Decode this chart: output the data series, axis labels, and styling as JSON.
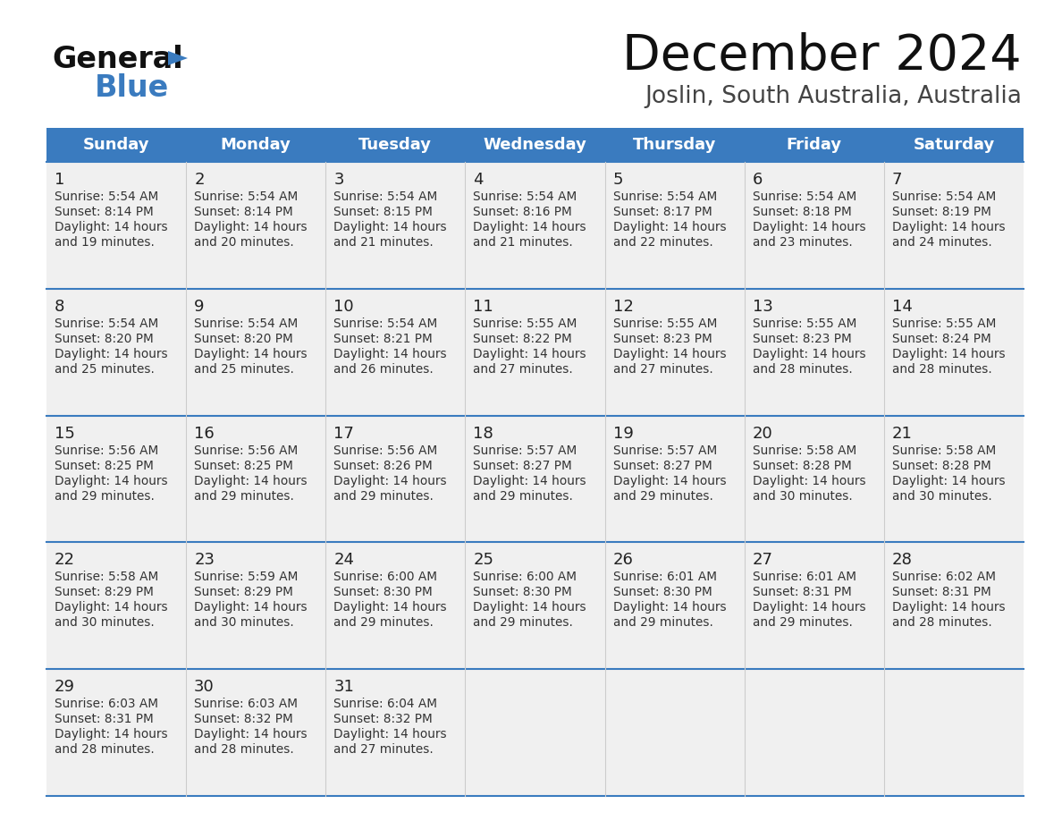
{
  "title": "December 2024",
  "subtitle": "Joslin, South Australia, Australia",
  "header_color": "#3a7bbf",
  "header_text_color": "#ffffff",
  "cell_bg": "#f0f0f0",
  "separator_color": "#3a7bbf",
  "text_color": "#222222",
  "small_text_color": "#333333",
  "day_headers": [
    "Sunday",
    "Monday",
    "Tuesday",
    "Wednesday",
    "Thursday",
    "Friday",
    "Saturday"
  ],
  "weeks": [
    [
      {
        "day": 1,
        "sunrise": "5:54 AM",
        "sunset": "8:14 PM",
        "daylight": "14 hours and 19 minutes."
      },
      {
        "day": 2,
        "sunrise": "5:54 AM",
        "sunset": "8:14 PM",
        "daylight": "14 hours and 20 minutes."
      },
      {
        "day": 3,
        "sunrise": "5:54 AM",
        "sunset": "8:15 PM",
        "daylight": "14 hours and 21 minutes."
      },
      {
        "day": 4,
        "sunrise": "5:54 AM",
        "sunset": "8:16 PM",
        "daylight": "14 hours and 21 minutes."
      },
      {
        "day": 5,
        "sunrise": "5:54 AM",
        "sunset": "8:17 PM",
        "daylight": "14 hours and 22 minutes."
      },
      {
        "day": 6,
        "sunrise": "5:54 AM",
        "sunset": "8:18 PM",
        "daylight": "14 hours and 23 minutes."
      },
      {
        "day": 7,
        "sunrise": "5:54 AM",
        "sunset": "8:19 PM",
        "daylight": "14 hours and 24 minutes."
      }
    ],
    [
      {
        "day": 8,
        "sunrise": "5:54 AM",
        "sunset": "8:20 PM",
        "daylight": "14 hours and 25 minutes."
      },
      {
        "day": 9,
        "sunrise": "5:54 AM",
        "sunset": "8:20 PM",
        "daylight": "14 hours and 25 minutes."
      },
      {
        "day": 10,
        "sunrise": "5:54 AM",
        "sunset": "8:21 PM",
        "daylight": "14 hours and 26 minutes."
      },
      {
        "day": 11,
        "sunrise": "5:55 AM",
        "sunset": "8:22 PM",
        "daylight": "14 hours and 27 minutes."
      },
      {
        "day": 12,
        "sunrise": "5:55 AM",
        "sunset": "8:23 PM",
        "daylight": "14 hours and 27 minutes."
      },
      {
        "day": 13,
        "sunrise": "5:55 AM",
        "sunset": "8:23 PM",
        "daylight": "14 hours and 28 minutes."
      },
      {
        "day": 14,
        "sunrise": "5:55 AM",
        "sunset": "8:24 PM",
        "daylight": "14 hours and 28 minutes."
      }
    ],
    [
      {
        "day": 15,
        "sunrise": "5:56 AM",
        "sunset": "8:25 PM",
        "daylight": "14 hours and 29 minutes."
      },
      {
        "day": 16,
        "sunrise": "5:56 AM",
        "sunset": "8:25 PM",
        "daylight": "14 hours and 29 minutes."
      },
      {
        "day": 17,
        "sunrise": "5:56 AM",
        "sunset": "8:26 PM",
        "daylight": "14 hours and 29 minutes."
      },
      {
        "day": 18,
        "sunrise": "5:57 AM",
        "sunset": "8:27 PM",
        "daylight": "14 hours and 29 minutes."
      },
      {
        "day": 19,
        "sunrise": "5:57 AM",
        "sunset": "8:27 PM",
        "daylight": "14 hours and 29 minutes."
      },
      {
        "day": 20,
        "sunrise": "5:58 AM",
        "sunset": "8:28 PM",
        "daylight": "14 hours and 30 minutes."
      },
      {
        "day": 21,
        "sunrise": "5:58 AM",
        "sunset": "8:28 PM",
        "daylight": "14 hours and 30 minutes."
      }
    ],
    [
      {
        "day": 22,
        "sunrise": "5:58 AM",
        "sunset": "8:29 PM",
        "daylight": "14 hours and 30 minutes."
      },
      {
        "day": 23,
        "sunrise": "5:59 AM",
        "sunset": "8:29 PM",
        "daylight": "14 hours and 30 minutes."
      },
      {
        "day": 24,
        "sunrise": "6:00 AM",
        "sunset": "8:30 PM",
        "daylight": "14 hours and 29 minutes."
      },
      {
        "day": 25,
        "sunrise": "6:00 AM",
        "sunset": "8:30 PM",
        "daylight": "14 hours and 29 minutes."
      },
      {
        "day": 26,
        "sunrise": "6:01 AM",
        "sunset": "8:30 PM",
        "daylight": "14 hours and 29 minutes."
      },
      {
        "day": 27,
        "sunrise": "6:01 AM",
        "sunset": "8:31 PM",
        "daylight": "14 hours and 29 minutes."
      },
      {
        "day": 28,
        "sunrise": "6:02 AM",
        "sunset": "8:31 PM",
        "daylight": "14 hours and 28 minutes."
      }
    ],
    [
      {
        "day": 29,
        "sunrise": "6:03 AM",
        "sunset": "8:31 PM",
        "daylight": "14 hours and 28 minutes."
      },
      {
        "day": 30,
        "sunrise": "6:03 AM",
        "sunset": "8:32 PM",
        "daylight": "14 hours and 28 minutes."
      },
      {
        "day": 31,
        "sunrise": "6:04 AM",
        "sunset": "8:32 PM",
        "daylight": "14 hours and 27 minutes."
      },
      null,
      null,
      null,
      null
    ]
  ],
  "bg_color": "#ffffff"
}
